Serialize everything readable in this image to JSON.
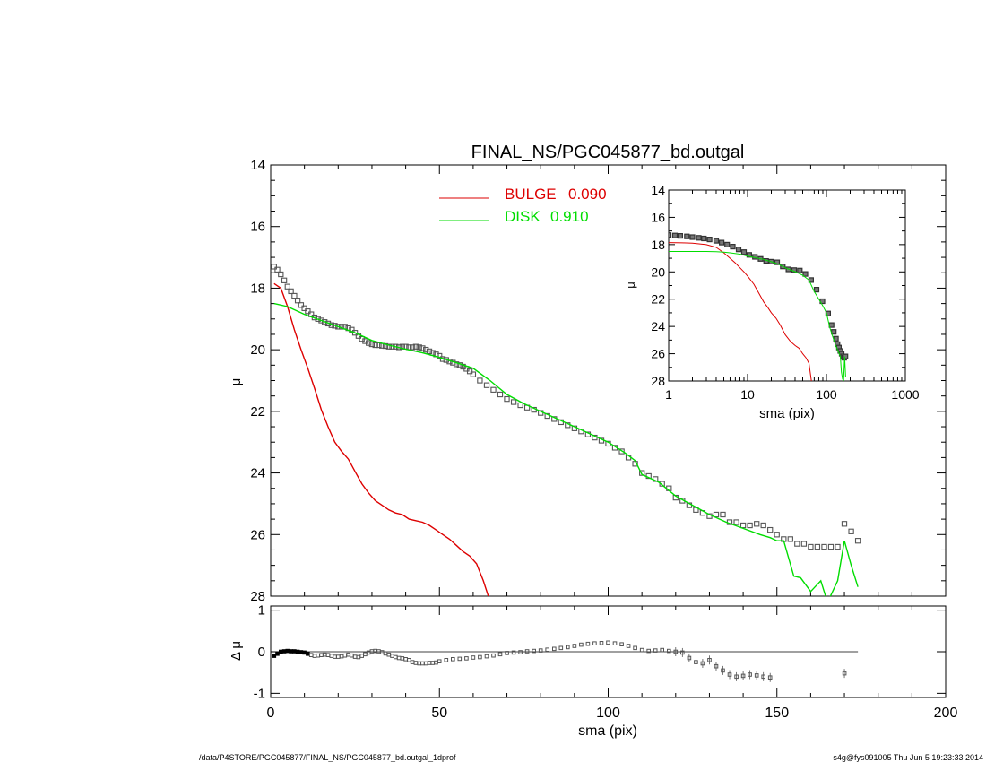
{
  "chart_data": [
    {
      "type": "scatter",
      "title": "FINAL_NS/PGC045877_bd.outgal",
      "xlabel": "sma (pix)",
      "ylabel": "μ",
      "xlim": [
        0,
        200
      ],
      "ylim": [
        28,
        14
      ],
      "y_inverted": true,
      "xticks": [
        "0",
        "50",
        "100",
        "150",
        "200"
      ],
      "yticks": [
        "14",
        "16",
        "18",
        "20",
        "22",
        "24",
        "26",
        "28"
      ],
      "legend": {
        "placement": "top-center",
        "entries": [
          {
            "label": "BULGE",
            "value": "0.090",
            "color": "#dd0000"
          },
          {
            "label": "DISK",
            "value": "0.910",
            "color": "#00dd00"
          }
        ]
      },
      "series": [
        {
          "kind": "observed",
          "style": "open-square-markers",
          "x": [
            1,
            2,
            3,
            4,
            5,
            6,
            7,
            8,
            9,
            10,
            11,
            12,
            13,
            14,
            15,
            16,
            17,
            18,
            19,
            20,
            21,
            22,
            23,
            24,
            25,
            26,
            27,
            28,
            29,
            30,
            31,
            32,
            33,
            34,
            35,
            36,
            37,
            38,
            39,
            40,
            41,
            42,
            43,
            44,
            45,
            46,
            47,
            48,
            49,
            50,
            51,
            52,
            53,
            54,
            55,
            56,
            57,
            58,
            59,
            60,
            62,
            64,
            66,
            68,
            70,
            72,
            74,
            76,
            78,
            80,
            82,
            84,
            86,
            88,
            90,
            92,
            94,
            96,
            98,
            100,
            102,
            104,
            106,
            108,
            110,
            112,
            114,
            116,
            118,
            120,
            122,
            124,
            126,
            128,
            130,
            132,
            134,
            136,
            138,
            140,
            142,
            144,
            146,
            148,
            150,
            152,
            154,
            156,
            158,
            160,
            162,
            164,
            166,
            168,
            170,
            172,
            174
          ],
          "y": [
            17.3,
            17.4,
            17.55,
            17.75,
            17.95,
            18.1,
            18.25,
            18.4,
            18.55,
            18.65,
            18.75,
            18.85,
            18.95,
            19.0,
            19.05,
            19.1,
            19.15,
            19.2,
            19.22,
            19.25,
            19.25,
            19.25,
            19.3,
            19.35,
            19.45,
            19.55,
            19.65,
            19.72,
            19.78,
            19.82,
            19.85,
            19.85,
            19.87,
            19.88,
            19.9,
            19.9,
            19.9,
            19.92,
            19.9,
            19.9,
            19.92,
            19.92,
            19.9,
            19.92,
            19.95,
            20.0,
            20.05,
            20.1,
            20.15,
            20.2,
            20.3,
            20.33,
            20.38,
            20.42,
            20.47,
            20.5,
            20.55,
            20.62,
            20.7,
            20.8,
            21.0,
            21.15,
            21.3,
            21.45,
            21.6,
            21.7,
            21.8,
            21.88,
            21.95,
            22.05,
            22.15,
            22.25,
            22.35,
            22.45,
            22.55,
            22.65,
            22.75,
            22.85,
            22.95,
            23.05,
            23.18,
            23.3,
            23.5,
            23.7,
            24.0,
            24.1,
            24.2,
            24.35,
            24.5,
            24.8,
            24.9,
            25.05,
            25.2,
            25.3,
            25.4,
            25.35,
            25.35,
            25.6,
            25.6,
            25.7,
            25.7,
            25.65,
            25.7,
            25.85,
            26.0,
            26.15,
            26.15,
            26.3,
            26.3,
            26.4,
            26.4,
            26.4,
            26.4,
            26.4,
            25.65,
            25.9,
            26.2
          ],
          "y_note": "estimated",
          "color": "#555555"
        },
        {
          "kind": "model-bulge",
          "style": "line",
          "color": "#dd0000",
          "x": [
            1,
            3,
            5,
            7,
            9,
            11,
            13,
            15,
            17,
            19,
            21,
            23,
            25,
            27,
            29,
            31,
            33,
            35,
            37,
            39,
            41,
            43,
            45,
            47,
            49,
            51,
            53,
            55,
            57,
            59,
            61,
            63,
            64.5
          ],
          "y": [
            17.85,
            18.0,
            18.6,
            19.35,
            20.0,
            20.6,
            21.25,
            21.95,
            22.5,
            23.0,
            23.3,
            23.55,
            23.95,
            24.35,
            24.65,
            24.9,
            25.05,
            25.2,
            25.3,
            25.35,
            25.5,
            25.55,
            25.6,
            25.7,
            25.85,
            26.0,
            26.15,
            26.35,
            26.55,
            26.7,
            26.95,
            27.5,
            28.0
          ]
        },
        {
          "kind": "model-disk",
          "style": "line",
          "color": "#00dd00",
          "x": [
            1,
            5,
            10,
            15,
            20,
            25,
            30,
            35,
            40,
            45,
            50,
            55,
            60,
            65,
            70,
            75,
            80,
            85,
            90,
            95,
            100,
            105,
            108,
            110,
            115,
            120,
            125,
            130,
            135,
            140,
            145,
            148,
            150,
            152,
            155,
            157,
            160,
            163,
            165,
            168,
            170,
            172,
            174
          ],
          "y": [
            18.5,
            18.6,
            18.85,
            19.05,
            19.25,
            19.45,
            19.7,
            19.85,
            19.98,
            20.1,
            20.25,
            20.42,
            20.6,
            21.0,
            21.45,
            21.75,
            22.0,
            22.25,
            22.5,
            22.75,
            23.0,
            23.35,
            23.6,
            24.05,
            24.3,
            24.75,
            25.05,
            25.35,
            25.6,
            25.8,
            26.0,
            26.1,
            26.2,
            26.2,
            27.35,
            27.4,
            27.85,
            27.5,
            28.2,
            27.5,
            26.2,
            27.0,
            27.7
          ]
        }
      ]
    },
    {
      "type": "scatter",
      "xlabel": "",
      "ylabel": "Δ μ",
      "xlim": [
        0,
        200
      ],
      "ylim": [
        -1.1,
        1.1
      ],
      "yticks": [
        "1",
        "0",
        "-1"
      ],
      "reference_line": 0,
      "series": [
        {
          "kind": "residual",
          "style": "open-square-markers",
          "color": "#555555",
          "x": [
            1,
            2,
            3,
            4,
            5,
            6,
            7,
            8,
            9,
            10,
            11,
            12,
            13,
            14,
            15,
            16,
            17,
            18,
            19,
            20,
            21,
            22,
            23,
            24,
            25,
            26,
            27,
            28,
            29,
            30,
            31,
            32,
            33,
            34,
            35,
            36,
            37,
            38,
            39,
            40,
            41,
            42,
            43,
            44,
            45,
            46,
            47,
            48,
            49,
            50,
            52,
            54,
            56,
            58,
            60,
            62,
            64,
            66,
            68,
            70,
            72,
            74,
            76,
            78,
            80,
            82,
            84,
            86,
            88,
            90,
            92,
            94,
            96,
            98,
            100,
            102,
            104,
            106,
            108,
            110,
            112,
            114,
            116,
            118,
            120,
            122,
            124,
            126,
            128,
            130,
            132,
            134,
            136,
            138,
            140,
            142,
            144,
            146,
            148,
            170
          ],
          "y": [
            -0.1,
            -0.05,
            0.0,
            0.01,
            0.02,
            0.01,
            0.01,
            0.0,
            -0.01,
            -0.02,
            -0.05,
            -0.08,
            -0.1,
            -0.09,
            -0.08,
            -0.07,
            -0.08,
            -0.1,
            -0.12,
            -0.12,
            -0.11,
            -0.09,
            -0.07,
            -0.09,
            -0.12,
            -0.13,
            -0.1,
            -0.06,
            -0.02,
            0.01,
            0.02,
            0.01,
            -0.01,
            -0.04,
            -0.07,
            -0.1,
            -0.13,
            -0.15,
            -0.16,
            -0.18,
            -0.2,
            -0.25,
            -0.27,
            -0.28,
            -0.28,
            -0.28,
            -0.27,
            -0.27,
            -0.26,
            -0.23,
            -0.2,
            -0.18,
            -0.17,
            -0.16,
            -0.14,
            -0.13,
            -0.11,
            -0.09,
            -0.06,
            -0.03,
            -0.02,
            -0.01,
            0.01,
            0.02,
            0.03,
            0.05,
            0.07,
            0.09,
            0.11,
            0.14,
            0.17,
            0.19,
            0.2,
            0.21,
            0.22,
            0.2,
            0.18,
            0.14,
            0.09,
            0.04,
            0.02,
            0.03,
            0.04,
            0.02,
            0.0,
            -0.02,
            -0.15,
            -0.25,
            -0.28,
            -0.2,
            -0.35,
            -0.45,
            -0.55,
            -0.6,
            -0.58,
            -0.55,
            -0.57,
            -0.6,
            -0.62,
            -0.52
          ]
        }
      ]
    },
    {
      "type": "scatter",
      "xlabel": "sma (pix)",
      "ylabel": "μ",
      "x_scale": "log",
      "xlim": [
        1,
        1000
      ],
      "ylim": [
        28,
        14
      ],
      "y_inverted": true,
      "xticks": [
        "1",
        "10",
        "100",
        "1000"
      ],
      "yticks": [
        "14",
        "16",
        "18",
        "20",
        "22",
        "24",
        "26",
        "28"
      ],
      "series": [
        {
          "kind": "observed",
          "style": "open-square-markers",
          "color": "#555555",
          "x": [
            1,
            1.2,
            1.4,
            1.7,
            2,
            2.4,
            2.8,
            3.3,
            4,
            4.7,
            5.5,
            6.5,
            7.7,
            9,
            10.5,
            12.4,
            14.6,
            17.2,
            20,
            23.7,
            28,
            33,
            39,
            46,
            54,
            64,
            75,
            89,
            105,
            116,
            124,
            132,
            138,
            144,
            150,
            156,
            162,
            168,
            174
          ],
          "y": [
            17.3,
            17.33,
            17.36,
            17.4,
            17.45,
            17.5,
            17.55,
            17.62,
            17.72,
            17.85,
            18.0,
            18.15,
            18.35,
            18.55,
            18.75,
            18.9,
            19.05,
            19.2,
            19.25,
            19.3,
            19.6,
            19.82,
            19.87,
            19.9,
            20.15,
            20.6,
            21.3,
            22.15,
            23.05,
            23.9,
            24.4,
            24.9,
            25.3,
            25.55,
            25.8,
            26.0,
            26.2,
            26.3,
            26.2
          ]
        },
        {
          "kind": "model-bulge",
          "style": "line",
          "color": "#dd0000",
          "x": [
            1,
            1.5,
            2,
            3,
            4,
            5,
            6,
            7,
            8,
            9,
            10,
            12,
            14,
            16,
            18,
            20,
            23,
            26,
            30,
            35,
            40,
            45,
            50,
            55,
            60,
            64.5
          ],
          "y": [
            17.85,
            17.87,
            17.9,
            18.0,
            18.2,
            18.6,
            19.0,
            19.35,
            19.7,
            20.0,
            20.3,
            20.9,
            21.6,
            22.2,
            22.6,
            23.0,
            23.4,
            23.9,
            24.6,
            25.1,
            25.4,
            25.6,
            26.0,
            26.3,
            26.7,
            28.0
          ]
        },
        {
          "kind": "model-disk",
          "style": "line",
          "color": "#00dd00",
          "x": [
            1,
            2,
            3,
            4,
            5,
            6,
            8,
            10,
            15,
            20,
            25,
            30,
            40,
            50,
            60,
            70,
            80,
            90,
            100,
            110,
            120,
            130,
            140,
            150,
            155,
            160,
            165,
            170,
            175
          ],
          "y": [
            18.5,
            18.5,
            18.5,
            18.52,
            18.55,
            18.6,
            18.7,
            18.85,
            19.05,
            19.25,
            19.45,
            19.7,
            19.98,
            20.25,
            20.6,
            21.45,
            22.0,
            22.5,
            23.0,
            24.05,
            24.75,
            25.35,
            25.8,
            26.2,
            27.35,
            27.85,
            28.0,
            26.2,
            27.7
          ]
        }
      ]
    }
  ],
  "footer": {
    "path": "/data/P4STORE/PGC045877/FINAL_NS/PGC045877_bd.outgal_1dprof",
    "stamp": "s4g@fys091005  Thu Jun  5 19:23:33 2014"
  }
}
